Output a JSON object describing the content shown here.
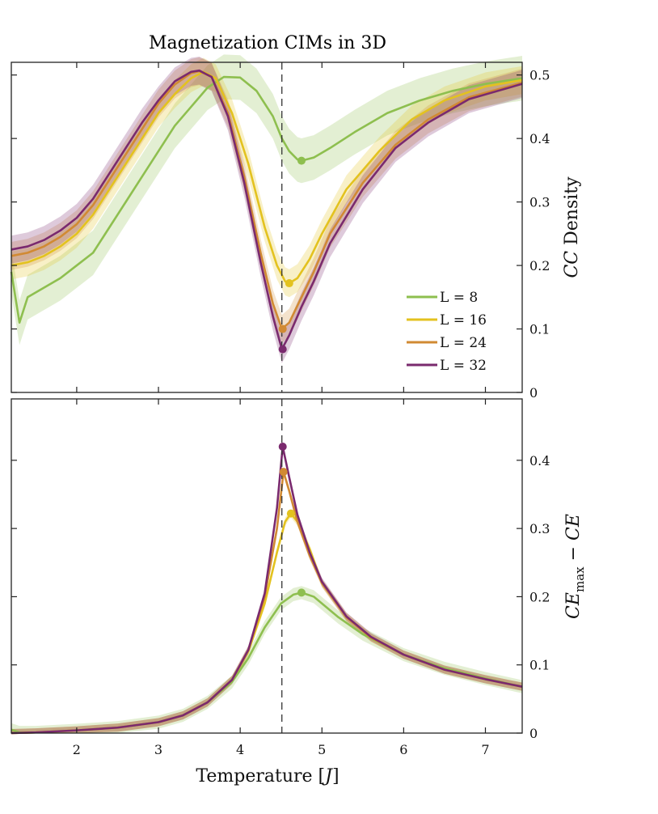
{
  "title": "Magnetization CIMs in 3D",
  "colors": {
    "L8": "#8ebf4f",
    "L16": "#e3c21f",
    "L24": "#d18a33",
    "L32": "#7a2a6e"
  },
  "chart_data": [
    {
      "type": "line",
      "panel": "top",
      "title": "Magnetization CIMs in 3D",
      "xlabel": "",
      "ylabel": "CC Density",
      "xlim": [
        1.2,
        7.45
      ],
      "ylim": [
        0,
        0.52
      ],
      "xticks": [
        2,
        3,
        4,
        5,
        6,
        7
      ],
      "yticks": [
        "0",
        "0.1",
        "0.2",
        "0.3",
        "0.4",
        "0.5"
      ],
      "ytick_values": [
        0,
        0.1,
        0.2,
        0.3,
        0.4,
        0.5
      ],
      "y_axis_side": "right",
      "vline_x": 4.51,
      "legend_position": "lower-right",
      "series": [
        {
          "name": "L = 8",
          "color": "#8ebf4f",
          "x": [
            1.2,
            1.3,
            1.4,
            1.6,
            1.8,
            2.0,
            2.2,
            2.4,
            2.6,
            2.8,
            3.0,
            3.2,
            3.4,
            3.6,
            3.8,
            4.0,
            4.2,
            4.4,
            4.51,
            4.6,
            4.7,
            4.75,
            4.9,
            5.1,
            5.4,
            5.8,
            6.2,
            6.6,
            7.0,
            7.45
          ],
          "y": [
            0.19,
            0.11,
            0.15,
            0.165,
            0.18,
            0.2,
            0.22,
            0.26,
            0.3,
            0.34,
            0.38,
            0.42,
            0.45,
            0.48,
            0.497,
            0.496,
            0.475,
            0.435,
            0.4,
            0.38,
            0.367,
            0.365,
            0.37,
            0.385,
            0.41,
            0.44,
            0.46,
            0.475,
            0.486,
            0.495
          ],
          "marker": {
            "x": 4.75,
            "y": 0.365
          }
        },
        {
          "name": "L = 16",
          "color": "#e3c21f",
          "x": [
            1.2,
            1.4,
            1.6,
            1.8,
            2.0,
            2.2,
            2.4,
            2.6,
            2.8,
            3.0,
            3.2,
            3.4,
            3.55,
            3.7,
            3.9,
            4.1,
            4.3,
            4.45,
            4.55,
            4.6,
            4.7,
            4.85,
            5.0,
            5.3,
            5.7,
            6.1,
            6.5,
            7.0,
            7.45
          ],
          "y": [
            0.2,
            0.205,
            0.215,
            0.23,
            0.25,
            0.28,
            0.32,
            0.36,
            0.4,
            0.44,
            0.47,
            0.495,
            0.505,
            0.495,
            0.44,
            0.36,
            0.26,
            0.2,
            0.175,
            0.172,
            0.18,
            0.21,
            0.25,
            0.32,
            0.38,
            0.43,
            0.46,
            0.482,
            0.492
          ],
          "marker": {
            "x": 4.6,
            "y": 0.172
          }
        },
        {
          "name": "L = 24",
          "color": "#d18a33",
          "x": [
            1.2,
            1.4,
            1.6,
            1.8,
            2.0,
            2.2,
            2.4,
            2.6,
            2.8,
            3.0,
            3.2,
            3.4,
            3.5,
            3.65,
            3.85,
            4.05,
            4.25,
            4.4,
            4.51,
            4.6,
            4.75,
            4.9,
            5.1,
            5.5,
            5.9,
            6.3,
            6.8,
            7.45
          ],
          "y": [
            0.215,
            0.22,
            0.23,
            0.245,
            0.265,
            0.295,
            0.335,
            0.375,
            0.415,
            0.455,
            0.485,
            0.503,
            0.506,
            0.497,
            0.44,
            0.34,
            0.22,
            0.14,
            0.1,
            0.11,
            0.15,
            0.19,
            0.25,
            0.33,
            0.39,
            0.43,
            0.465,
            0.488
          ],
          "marker": {
            "x": 4.52,
            "y": 0.1
          }
        },
        {
          "name": "L = 32",
          "color": "#7a2a6e",
          "x": [
            1.2,
            1.4,
            1.6,
            1.8,
            2.0,
            2.2,
            2.4,
            2.6,
            2.8,
            3.0,
            3.2,
            3.4,
            3.5,
            3.65,
            3.85,
            4.05,
            4.25,
            4.4,
            4.51,
            4.6,
            4.75,
            4.9,
            5.1,
            5.5,
            5.9,
            6.3,
            6.8,
            7.45
          ],
          "y": [
            0.225,
            0.23,
            0.24,
            0.255,
            0.275,
            0.305,
            0.345,
            0.385,
            0.425,
            0.46,
            0.49,
            0.505,
            0.507,
            0.497,
            0.435,
            0.33,
            0.205,
            0.12,
            0.068,
            0.09,
            0.135,
            0.175,
            0.235,
            0.32,
            0.385,
            0.425,
            0.462,
            0.486
          ],
          "marker": {
            "x": 4.52,
            "y": 0.068
          }
        }
      ]
    },
    {
      "type": "line",
      "panel": "bottom",
      "title": "",
      "xlabel": "Temperature [J]",
      "ylabel": "CE_max − CE",
      "xlim": [
        1.2,
        7.45
      ],
      "ylim": [
        0,
        0.49
      ],
      "xticks": [
        2,
        3,
        4,
        5,
        6,
        7
      ],
      "yticks": [
        "0",
        "0.1",
        "0.2",
        "0.3",
        "0.4"
      ],
      "ytick_values": [
        0,
        0.1,
        0.2,
        0.3,
        0.4
      ],
      "y_axis_side": "right",
      "vline_x": 4.51,
      "series": [
        {
          "name": "L = 8",
          "color": "#8ebf4f",
          "x": [
            1.2,
            1.3,
            1.5,
            2.0,
            2.5,
            3.0,
            3.3,
            3.6,
            3.9,
            4.1,
            4.3,
            4.5,
            4.65,
            4.75,
            4.9,
            5.2,
            5.5,
            6.0,
            6.5,
            7.0,
            7.45
          ],
          "y": [
            0.005,
            0.001,
            0.001,
            0.004,
            0.008,
            0.016,
            0.026,
            0.045,
            0.075,
            0.11,
            0.155,
            0.19,
            0.203,
            0.206,
            0.2,
            0.17,
            0.145,
            0.115,
            0.095,
            0.08,
            0.068
          ],
          "marker": {
            "x": 4.75,
            "y": 0.206
          }
        },
        {
          "name": "L = 16",
          "color": "#e3c21f",
          "x": [
            1.2,
            1.5,
            2.0,
            2.5,
            3.0,
            3.3,
            3.6,
            3.9,
            4.1,
            4.3,
            4.45,
            4.55,
            4.62,
            4.7,
            4.85,
            5.0,
            5.3,
            5.6,
            6.0,
            6.5,
            7.0,
            7.45
          ],
          "y": [
            0.0,
            0.001,
            0.004,
            0.008,
            0.016,
            0.026,
            0.045,
            0.078,
            0.12,
            0.19,
            0.265,
            0.31,
            0.322,
            0.31,
            0.27,
            0.22,
            0.17,
            0.14,
            0.115,
            0.093,
            0.079,
            0.068
          ],
          "marker": {
            "x": 4.62,
            "y": 0.322
          }
        },
        {
          "name": "L = 24",
          "color": "#d18a33",
          "x": [
            1.2,
            1.5,
            2.0,
            2.5,
            3.0,
            3.3,
            3.6,
            3.9,
            4.1,
            4.3,
            4.45,
            4.53,
            4.6,
            4.7,
            4.85,
            5.0,
            5.3,
            5.6,
            6.0,
            6.5,
            7.0,
            7.45
          ],
          "y": [
            0.0,
            0.001,
            0.004,
            0.008,
            0.016,
            0.026,
            0.045,
            0.078,
            0.122,
            0.2,
            0.3,
            0.383,
            0.355,
            0.31,
            0.26,
            0.22,
            0.17,
            0.14,
            0.115,
            0.093,
            0.079,
            0.068
          ],
          "marker": {
            "x": 4.53,
            "y": 0.383
          }
        },
        {
          "name": "L = 32",
          "color": "#7a2a6e",
          "x": [
            1.2,
            1.5,
            2.0,
            2.5,
            3.0,
            3.3,
            3.6,
            3.9,
            4.1,
            4.3,
            4.45,
            4.52,
            4.6,
            4.7,
            4.85,
            5.0,
            5.3,
            5.6,
            6.0,
            6.5,
            7.0,
            7.45
          ],
          "y": [
            0.0,
            0.001,
            0.004,
            0.008,
            0.016,
            0.026,
            0.045,
            0.078,
            0.122,
            0.205,
            0.33,
            0.42,
            0.375,
            0.32,
            0.265,
            0.222,
            0.171,
            0.141,
            0.115,
            0.093,
            0.079,
            0.068
          ],
          "marker": {
            "x": 4.52,
            "y": 0.42
          }
        }
      ]
    }
  ]
}
